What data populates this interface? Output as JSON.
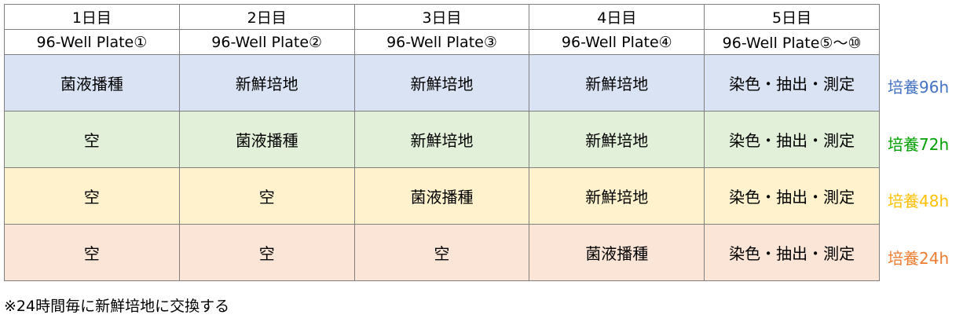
{
  "headers": {
    "days": [
      "1日目",
      "2日目",
      "3日目",
      "4日目",
      "5日目"
    ],
    "plates": [
      "96-Well Plate①",
      "96-Well Plate②",
      "96-Well Plate③",
      "96-Well Plate④",
      "96-Well Plate⑤〜⑩"
    ]
  },
  "rows": [
    {
      "cells": [
        "菌液播種",
        "新鮮培地",
        "新鮮培地",
        "新鮮培地",
        "染色・抽出・測定"
      ],
      "label": "培養96h",
      "bg": "#dae3f3",
      "label_color": "#4472c4"
    },
    {
      "cells": [
        "空",
        "菌液播種",
        "新鮮培地",
        "新鮮培地",
        "染色・抽出・測定"
      ],
      "label": "培養72h",
      "bg": "#e2f0d9",
      "label_color": "#00a000"
    },
    {
      "cells": [
        "空",
        "空",
        "菌液播種",
        "新鮮培地",
        "染色・抽出・測定"
      ],
      "label": "培養48h",
      "bg": "#fff2cc",
      "label_color": "#ffc000"
    },
    {
      "cells": [
        "空",
        "空",
        "空",
        "菌液播種",
        "染色・抽出・測定"
      ],
      "label": "培養24h",
      "bg": "#fbe5d6",
      "label_color": "#ed7d31"
    }
  ],
  "note": "※24時間毎に新鮮培地に交換する"
}
